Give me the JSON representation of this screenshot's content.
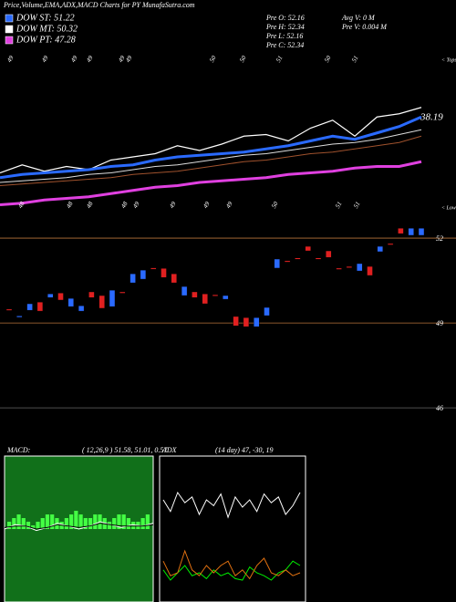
{
  "header": {
    "title": "Price,Volume,EMA,ADX,MACD Charts for PY MunafaSutra.com",
    "legend": [
      {
        "label": "DOW ST: 51.22",
        "color": "#2a6aff"
      },
      {
        "label": "DOW MT: 50.32",
        "color": "#ffffff"
      },
      {
        "label": "DOW PT: 47.28",
        "color": "#e040e0"
      }
    ],
    "stats": [
      "Pre  O: 52.16",
      "Pre  H: 52.34",
      "Pre  L: 52.16",
      "Pre  C: 52.34"
    ],
    "volume": [
      "Avg V: 0  M",
      "Pre  V: 0.004  M"
    ]
  },
  "chart_data": [
    {
      "type": "line",
      "ylim": [
        0,
        100
      ],
      "last_label": "38.19",
      "tops": [
        "49",
        "49",
        "49",
        "49",
        "49",
        "49",
        "50",
        "50",
        "51",
        "50",
        "51"
      ],
      "tops_label": "< Tops",
      "lows": [
        "48",
        "48",
        "48",
        "48",
        "49",
        "49",
        "49",
        "49",
        "50",
        "51",
        "51"
      ],
      "lows_label": "< Lows",
      "series": [
        {
          "name": "Price",
          "color": "#ffffff",
          "width": 1.2,
          "values": [
            26,
            31,
            27,
            30,
            28,
            34,
            36,
            38,
            43,
            40,
            44,
            49,
            50,
            46,
            54,
            59,
            49,
            61,
            63,
            67
          ]
        },
        {
          "name": "ST",
          "color": "#2a6aff",
          "width": 3,
          "values": [
            23,
            25,
            26,
            27,
            28,
            30,
            31,
            34,
            36,
            37,
            38,
            39,
            41,
            43,
            46,
            49,
            47,
            51,
            55,
            61
          ]
        },
        {
          "name": "MT",
          "color": "#dddddd",
          "width": 1,
          "values": [
            20,
            21,
            22,
            23,
            25,
            26,
            28,
            30,
            31,
            33,
            35,
            37,
            38,
            40,
            42,
            44,
            45,
            47,
            50,
            53
          ]
        },
        {
          "name": "LT",
          "color": "#a0522d",
          "width": 1,
          "values": [
            18,
            19,
            20,
            21,
            22,
            23,
            25,
            26,
            27,
            29,
            31,
            33,
            34,
            36,
            38,
            39,
            41,
            43,
            45,
            49
          ]
        },
        {
          "name": "PT",
          "color": "#e040e0",
          "width": 3,
          "values": [
            6,
            7,
            9,
            10,
            11,
            13,
            15,
            17,
            18,
            20,
            21,
            22,
            23,
            25,
            26,
            27,
            29,
            30,
            30,
            33
          ]
        }
      ]
    },
    {
      "type": "candlestick",
      "ylim": [
        44.94,
        52.68
      ],
      "yticks": [
        52,
        49,
        46
      ],
      "up_color": "#2a6aff",
      "down_color": "#e02020",
      "open": [
        49.49,
        49.2,
        49.45,
        49.74,
        49.9,
        50.06,
        49.58,
        49.42,
        50.1,
        49.97,
        49.58,
        50.1,
        50.42,
        50.55,
        50.95,
        50.93,
        50.74,
        49.97,
        50.1,
        50.03,
        50.0,
        49.84,
        49.23,
        49.19,
        48.87,
        49.26,
        50.94,
        51.2,
        51.3,
        51.71,
        51.3,
        51.55,
        50.94,
        51.0,
        50.84,
        51.0,
        51.52,
        51.81,
        52.35,
        52.1,
        52.1
      ],
      "close": [
        49.45,
        49.25,
        49.68,
        49.42,
        50.03,
        49.81,
        49.87,
        49.61,
        49.9,
        49.52,
        50.16,
        50.06,
        50.74,
        50.87,
        50.92,
        50.61,
        50.42,
        50.29,
        49.9,
        49.68,
        49.97,
        49.97,
        48.9,
        48.87,
        49.19,
        49.55,
        51.26,
        51.17,
        51.27,
        51.55,
        51.27,
        51.32,
        50.91,
        50.97,
        51.1,
        50.68,
        51.71,
        51.78,
        52.16,
        52.35,
        52.35
      ]
    },
    {
      "type": "macd",
      "title": "MACD:",
      "params": "( 12,26,9 ) 51.58, 51.01, 0.57",
      "ylim": [
        0,
        100
      ],
      "hist_ylim": [
        -20,
        20
      ],
      "hist_color": "#44ff44",
      "series": [
        {
          "name": "MACD",
          "color": "#ffffff",
          "values": [
            50,
            53,
            52,
            49,
            51,
            54,
            52,
            50,
            52,
            55,
            53,
            51,
            53,
            52,
            54
          ]
        },
        {
          "name": "Signal",
          "color": "#000000",
          "values": [
            51,
            52,
            52,
            50,
            51,
            53,
            52,
            51,
            52,
            54,
            53,
            52,
            52,
            52,
            53
          ]
        }
      ],
      "histogram": [
        2,
        3,
        4,
        3,
        2,
        1,
        2,
        3,
        4,
        4,
        3,
        2,
        3,
        4,
        5,
        4,
        3,
        3,
        4,
        4,
        3,
        2,
        3,
        4,
        4,
        3,
        2,
        2,
        3,
        4
      ]
    },
    {
      "type": "adx",
      "title": "ADX",
      "params": "(14  day) 47,  -30,  19",
      "ylim": [
        0,
        100
      ],
      "series": [
        {
          "name": "ADX",
          "color": "#ffffff",
          "values": [
            70,
            62,
            75,
            68,
            72,
            60,
            70,
            66,
            74,
            58,
            72,
            65,
            70,
            62,
            74,
            68,
            72,
            60,
            66,
            75
          ]
        },
        {
          "name": "+DI",
          "color": "#00ee00",
          "values": [
            22,
            15,
            20,
            25,
            18,
            20,
            16,
            22,
            18,
            20,
            16,
            15,
            24,
            20,
            18,
            15,
            20,
            22,
            28,
            25
          ]
        },
        {
          "name": "-DI",
          "color": "#e07010",
          "values": [
            28,
            18,
            20,
            35,
            22,
            18,
            25,
            20,
            25,
            28,
            18,
            22,
            16,
            25,
            30,
            20,
            18,
            22,
            18,
            20
          ]
        }
      ]
    }
  ]
}
